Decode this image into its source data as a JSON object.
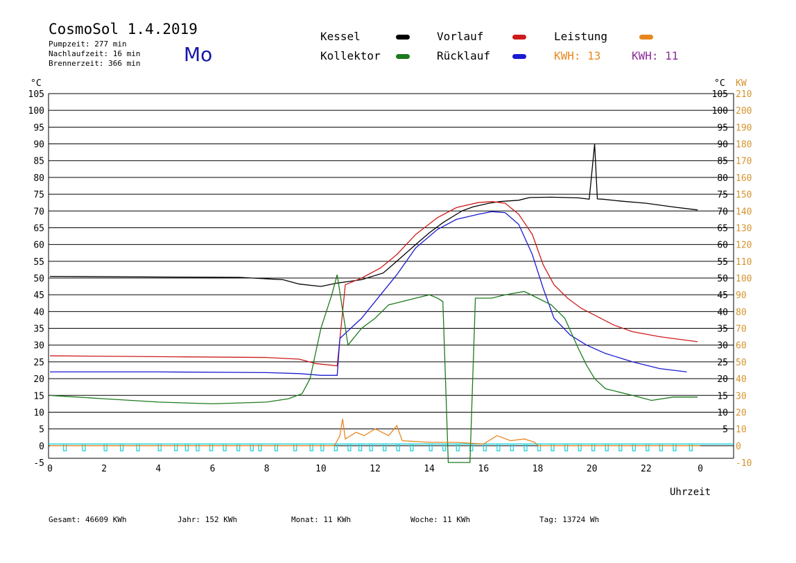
{
  "header": {
    "title": "CosmoSol 1.4.2019",
    "day": "Mo",
    "pumpzeit": "Pumpzeit:      277 min",
    "nachlaufzeit": "Nachlaufzeit:   16 min",
    "brennerzeit": "Brennerzeit:   366 min"
  },
  "legend": {
    "kessel": "Kessel",
    "vorlauf": "Vorlauf",
    "leistung": "Leistung",
    "kollektor": "Kollektor",
    "ruecklauf": "Rücklauf",
    "kwh1": "KWH: 13",
    "kwh2": "KWH: 11"
  },
  "colors": {
    "kessel": "#000000",
    "vorlauf": "#cc1b1b",
    "leistung": "#e8861e",
    "kollektor": "#1c7a1c",
    "ruecklauf": "#1a1ad0",
    "kwh2": "#8a2b9a",
    "pump": "#22d3dc",
    "right_axis": "#d4942e"
  },
  "axes": {
    "left_unit": "°C",
    "right_unit_c": "°C",
    "right_unit_kw": "KW",
    "x_title": "Uhrzeit"
  },
  "footer": {
    "gesamt": "Gesamt:  46609 KWh",
    "jahr": "Jahr:    152 KWh",
    "monat": "Monat:     11 KWh",
    "woche": "Woche:     11 KWh",
    "tag": "Tag:  13724 Wh"
  },
  "chart_data": {
    "type": "line",
    "title": "CosmoSol 1.4.2019",
    "xlabel": "Uhrzeit",
    "ylabel": "°C",
    "xlim": [
      0,
      24
    ],
    "ylim": [
      -5,
      105
    ],
    "y2lim": [
      -10,
      210
    ],
    "x_ticks": [
      "0",
      "2",
      "4",
      "6",
      "8",
      "10",
      "12",
      "14",
      "16",
      "18",
      "20",
      "22",
      "0"
    ],
    "y_ticks": [
      -5,
      0,
      5,
      10,
      15,
      20,
      25,
      30,
      35,
      40,
      45,
      50,
      55,
      60,
      65,
      70,
      75,
      80,
      85,
      90,
      95,
      100,
      105
    ],
    "y2_ticks": [
      -10,
      0,
      10,
      20,
      30,
      40,
      50,
      60,
      70,
      80,
      90,
      100,
      110,
      120,
      130,
      140,
      150,
      160,
      170,
      180,
      190,
      200,
      210
    ],
    "grid": true,
    "series": [
      {
        "name": "Kessel",
        "color": "#000000",
        "x": [
          0,
          4,
          7,
          8.6,
          9.2,
          10,
          10.6,
          11.5,
          12.3,
          12.8,
          13.5,
          14,
          14.5,
          14.9,
          15.2,
          15.6,
          16.2,
          16.6,
          17.3,
          17.7,
          18.5,
          19.5,
          19.9,
          20.1,
          20.2,
          20.4,
          21,
          22,
          23,
          23.9
        ],
        "y": [
          50.5,
          50.3,
          50.2,
          49.5,
          48.2,
          47.5,
          48.5,
          49.5,
          51.5,
          55,
          60,
          63.5,
          66.5,
          68.5,
          70,
          71.2,
          72.3,
          72.8,
          73.2,
          74,
          74.1,
          73.9,
          73.5,
          90,
          73.6,
          73.5,
          73,
          72.3,
          71.2,
          70.3
        ]
      },
      {
        "name": "Vorlauf",
        "color": "#cc1b1b",
        "x": [
          0,
          5,
          8,
          9.2,
          9.8,
          10.6,
          10.9,
          11.5,
          12.2,
          12.8,
          13.5,
          14.3,
          15,
          15.8,
          16.3,
          16.8,
          17.3,
          17.8,
          18.2,
          18.6,
          19.1,
          19.6,
          20.2,
          20.8,
          21.5,
          22.5,
          23.9
        ],
        "y": [
          26.8,
          26.5,
          26.3,
          25.8,
          24.5,
          23.8,
          48,
          50,
          53,
          57,
          63,
          68,
          71,
          72.5,
          72.8,
          72.3,
          69,
          63,
          54,
          48,
          44,
          41,
          38.5,
          36,
          34,
          32.5,
          31
        ]
      },
      {
        "name": "Rücklauf",
        "color": "#1a1ad0",
        "x": [
          0,
          4,
          8,
          9.2,
          10,
          10.6,
          10.7,
          11.5,
          12.2,
          12.8,
          13.5,
          14.3,
          15,
          15.8,
          16.3,
          16.8,
          17.3,
          17.8,
          18.2,
          18.6,
          19.2,
          19.8,
          20.5,
          21.5,
          22.5,
          23.5
        ],
        "y": [
          22,
          22,
          21.8,
          21.5,
          21,
          21,
          32,
          38,
          45,
          51,
          59,
          64.5,
          67.5,
          69,
          69.8,
          69.5,
          66,
          57,
          47,
          38,
          33,
          30,
          27.5,
          25,
          23,
          22
        ]
      },
      {
        "name": "Kollektor",
        "color": "#1c7a1c",
        "x": [
          0,
          2,
          4,
          6,
          8,
          8.8,
          9.3,
          9.6,
          10,
          10.4,
          10.6,
          11,
          11.5,
          12,
          12.5,
          13,
          13.5,
          14,
          14.3,
          14.5,
          14.7,
          15.5,
          15.7,
          16.3,
          16.8,
          17.5,
          18,
          18.5,
          19,
          19.5,
          19.8,
          20.1,
          20.5,
          21.5,
          22.2,
          23,
          23.9
        ],
        "y": [
          15,
          14,
          13,
          12.5,
          13,
          14,
          15.5,
          20,
          35,
          45,
          51,
          30,
          35,
          38,
          42,
          43,
          44,
          45,
          44,
          43,
          -5,
          -5,
          44,
          44,
          45,
          46,
          44,
          42,
          38,
          29,
          24,
          20,
          17,
          15,
          13.5,
          14.5,
          14.5
        ]
      },
      {
        "name": "Leistung",
        "color": "#e8861e",
        "x": [
          0,
          10.5,
          10.7,
          10.8,
          10.9,
          11.3,
          11.6,
          12,
          12.5,
          12.8,
          13,
          14,
          15,
          16,
          16.5,
          17,
          17.5,
          17.9,
          18,
          24
        ],
        "y": [
          0,
          0,
          3,
          8,
          2,
          4,
          3,
          5,
          3,
          6,
          1.5,
          1,
          1,
          0.5,
          3,
          1.5,
          2,
          1,
          0,
          0
        ]
      }
    ],
    "pump_pulses_x": [
      0.5,
      1.2,
      2,
      2.6,
      3.2,
      4,
      4.6,
      5,
      5.4,
      5.9,
      6.4,
      6.9,
      7.4,
      7.7,
      8.3,
      9,
      9.6,
      10,
      10.5,
      11,
      11.4,
      11.8,
      12.3,
      12.8,
      13.3,
      14,
      14.5,
      15,
      15.5,
      16,
      16.5,
      17,
      17.5,
      18,
      18.5,
      19,
      19.5,
      20,
      20.5,
      21,
      21.5,
      22,
      22.5,
      23,
      23.6
    ]
  }
}
